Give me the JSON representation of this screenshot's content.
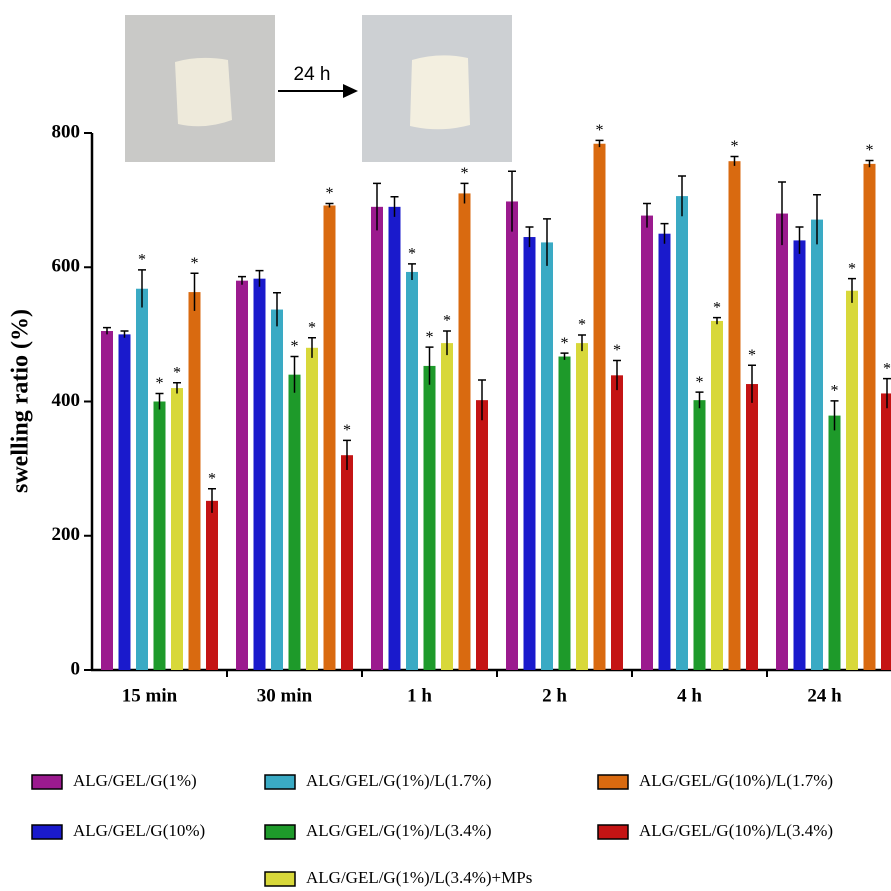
{
  "chart_data": {
    "type": "bar",
    "annotation": "24 h",
    "ylabel": "swelling ratio (%)",
    "categories": [
      "15 min",
      "30 min",
      "1 h",
      "2 h",
      "4 h",
      "24 h"
    ],
    "ylim": [
      0,
      800
    ],
    "yticks": [
      0,
      200,
      400,
      600,
      800
    ],
    "series": [
      {
        "name": "ALG/GEL/G(1%)",
        "color": "#9b1a8e",
        "values": [
          505,
          580,
          690,
          698,
          677,
          680
        ],
        "errors": [
          5,
          6,
          35,
          45,
          18,
          47
        ],
        "markers": [
          null,
          null,
          null,
          null,
          null,
          null
        ]
      },
      {
        "name": "ALG/GEL/G(10%)",
        "color": "#1a1acc",
        "values": [
          500,
          583,
          690,
          645,
          650,
          640
        ],
        "errors": [
          5,
          12,
          15,
          15,
          15,
          20
        ],
        "markers": [
          null,
          null,
          null,
          null,
          null,
          null
        ]
      },
      {
        "name": "ALG/GEL/G(1%)/L(1.7%)",
        "color": "#3aaac4",
        "values": [
          568,
          537,
          593,
          637,
          706,
          671
        ],
        "errors": [
          28,
          25,
          12,
          35,
          30,
          37
        ],
        "markers": [
          "*",
          null,
          "*",
          null,
          null,
          null
        ]
      },
      {
        "name": "ALG/GEL/G(1%)/L(3.4%)",
        "color": "#1e9a2a",
        "values": [
          400,
          440,
          453,
          467,
          402,
          379
        ],
        "errors": [
          12,
          27,
          28,
          5,
          12,
          22
        ],
        "markers": [
          "*",
          "*",
          "*",
          "*",
          "*",
          "*"
        ]
      },
      {
        "name": "ALG/GEL/G(1%)/L(3.4%)+MPs",
        "color": "#d8d83a",
        "values": [
          420,
          480,
          487,
          487,
          520,
          565
        ],
        "errors": [
          8,
          15,
          18,
          12,
          5,
          18
        ],
        "markers": [
          "*",
          "*",
          "*",
          "*",
          "*",
          "*"
        ]
      },
      {
        "name": "ALG/GEL/G(10%)/L(1.7%)",
        "color": "#d96a10",
        "values": [
          563,
          692,
          710,
          784,
          758,
          754
        ],
        "errors": [
          28,
          3,
          15,
          5,
          7,
          5
        ],
        "markers": [
          "*",
          "*",
          "*",
          "*",
          "*",
          "*"
        ]
      },
      {
        "name": "ALG/GEL/G(10%)/L(3.4%)",
        "color": "#c41414",
        "values": [
          252,
          320,
          402,
          439,
          426,
          412
        ],
        "errors": [
          18,
          22,
          30,
          22,
          28,
          22
        ],
        "markers": [
          "*",
          "*",
          null,
          "*",
          "*",
          "*"
        ]
      }
    ]
  }
}
